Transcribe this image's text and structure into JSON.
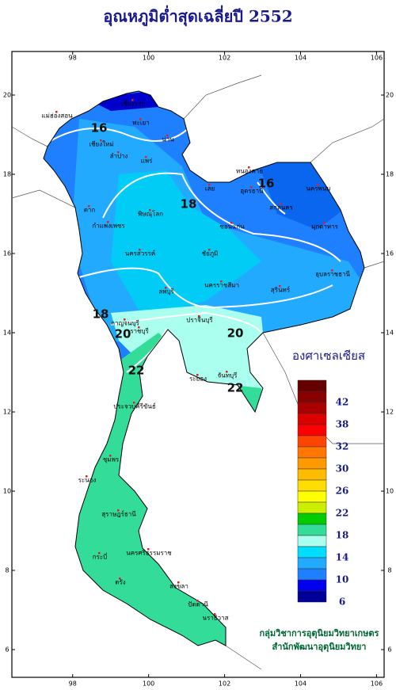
{
  "title": "อุณหภูมิต่ำสุดเฉลี่ยปี 2552",
  "map": {
    "xlim": [
      96.4,
      106.2
    ],
    "ylim": [
      5.3,
      21.1
    ],
    "xticks": [
      98,
      100,
      102,
      104,
      106
    ],
    "yticks": [
      6,
      8,
      10,
      12,
      14,
      16,
      18,
      20
    ]
  },
  "legend": {
    "title": "องศาเซลเซียส",
    "colors": [
      "#660000",
      "#880000",
      "#aa0000",
      "#dd0000",
      "#ff0000",
      "#ff4400",
      "#ff7700",
      "#ff9900",
      "#ffbb00",
      "#ffdd00",
      "#ffff00",
      "#ccee00",
      "#00cc00",
      "#33dd99",
      "#aaffee",
      "#00ddff",
      "#22aaff",
      "#1e7fff",
      "#0000ee",
      "#000099"
    ],
    "labels": [
      42,
      38,
      32,
      30,
      26,
      22,
      18,
      14,
      10,
      6
    ]
  },
  "contour_labels": [
    16,
    16,
    18,
    18,
    20,
    20,
    22,
    22
  ],
  "places": [
    "เชียงราย",
    "แม่ฮ่องสอน",
    "พะเยา",
    "เชียงใหม่",
    "ลำปาง",
    "น่าน",
    "แพร่",
    "หนองคาย",
    "เลย",
    "อุดรธานี",
    "สกลนคร",
    "นครพนม",
    "ตาก",
    "พิษณุโลก",
    "กำแพงเพชร",
    "ขอนแก่น",
    "มุกดาหาร",
    "ชัยภูมิ",
    "นครสวรรค์",
    "นครราชสีมา",
    "สุรินทร์",
    "อุบลราชธานี",
    "ลพบุรี",
    "กาญจนบุรี",
    "ปราจีนบุรี",
    "ราชบุรี",
    "ระยอง",
    "จันทบุรี",
    "ประจวบคีรีขันธ์",
    "ชุมพร",
    "ระนอง",
    "สุราษฎร์ธานี",
    "นครศรีธรรมราช",
    "กระบี่",
    "ตรัง",
    "สงขลา",
    "ปัตตานี",
    "นราธิวาส"
  ],
  "credits": [
    "กลุ่มวิชาการอุตุนิยมวิทยาเกษตร",
    "สำนักพัฒนาอุตุนิยมวิทยา"
  ]
}
